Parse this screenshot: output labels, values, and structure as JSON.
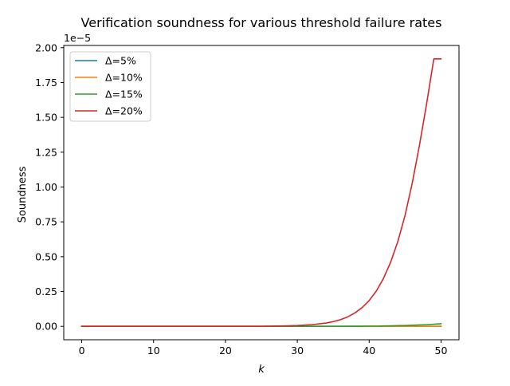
{
  "chart_data": {
    "type": "line",
    "title": "Verification soundness for various threshold failure rates",
    "xlabel": "k",
    "ylabel": "Soundness",
    "y_offset_label": "1e−5",
    "xlim": [
      -2.5,
      52.5
    ],
    "ylim": [
      -0.096,
      2.016
    ],
    "y_scale_multiplier": 1e-05,
    "grid": false,
    "legend_position": "upper-left",
    "x_ticks": [
      0,
      10,
      20,
      30,
      40,
      50
    ],
    "x_tick_labels": [
      "0",
      "10",
      "20",
      "30",
      "40",
      "50"
    ],
    "y_ticks": [
      0.0,
      0.25,
      0.5,
      0.75,
      1.0,
      1.25,
      1.5,
      1.75,
      2.0
    ],
    "y_tick_labels": [
      "0.00",
      "0.25",
      "0.50",
      "0.75",
      "1.00",
      "1.25",
      "1.50",
      "1.75",
      "2.00"
    ],
    "x": [
      0,
      5,
      10,
      15,
      20,
      25,
      28,
      30,
      32,
      34,
      35,
      36,
      37,
      38,
      39,
      40,
      41,
      42,
      43,
      44,
      45,
      46,
      47,
      48,
      49,
      50
    ],
    "series": [
      {
        "name": "Δ=5%",
        "color": "#1f77b4",
        "values": [
          0,
          0,
          0,
          0,
          0,
          0,
          0,
          0,
          0,
          0,
          0,
          0,
          0,
          0,
          0,
          0,
          0,
          0,
          0,
          0,
          0,
          0,
          0,
          0,
          0,
          0
        ]
      },
      {
        "name": "Δ=10%",
        "color": "#ff7f0e",
        "values": [
          0,
          0,
          0,
          0,
          0,
          0,
          0,
          0,
          0,
          0,
          0,
          0,
          0,
          0,
          0,
          0,
          0,
          0,
          0,
          0,
          0,
          0,
          0,
          0,
          0,
          0.001
        ]
      },
      {
        "name": "Δ=15%",
        "color": "#2ca02c",
        "values": [
          0,
          0,
          0,
          0,
          0,
          0,
          0,
          0,
          0,
          0,
          0,
          0,
          0.001,
          0.001,
          0.001,
          0.002,
          0.002,
          0.003,
          0.004,
          0.005,
          0.006,
          0.008,
          0.01,
          0.012,
          0.015,
          0.019
        ]
      },
      {
        "name": "Δ=20%",
        "color": "#d62728",
        "values": [
          0,
          0,
          0,
          0,
          0,
          0,
          0.003,
          0.006,
          0.012,
          0.024,
          0.034,
          0.048,
          0.068,
          0.096,
          0.134,
          0.185,
          0.254,
          0.345,
          0.462,
          0.611,
          0.798,
          1.03,
          1.3,
          1.6,
          1.92,
          1.92
        ]
      }
    ]
  }
}
